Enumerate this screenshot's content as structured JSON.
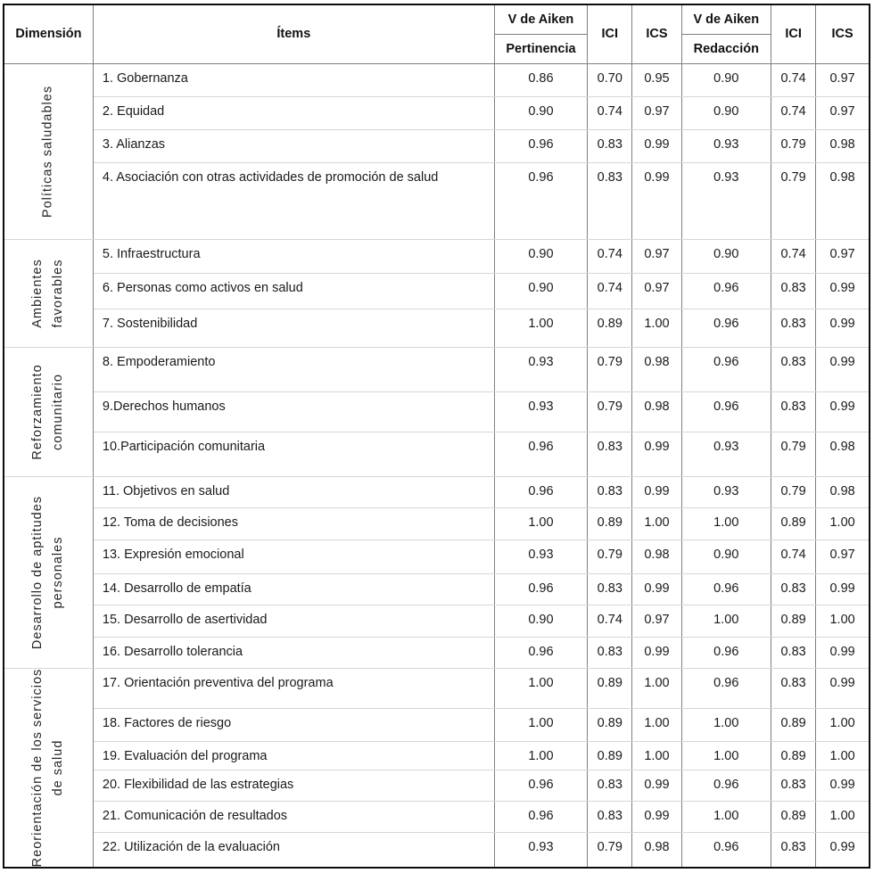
{
  "table": {
    "header": {
      "dimension": "Dimensión",
      "items": "Ítems",
      "aiken_pertinencia_top": "V de Aiken",
      "aiken_pertinencia_sub": "Pertinencia",
      "ici_1": "ICI",
      "ics_1": "ICS",
      "aiken_redaccion_top": "V de Aiken",
      "aiken_redaccion_sub": "Redacción",
      "ici_2": "ICI",
      "ics_2": "ICS"
    },
    "groups": [
      {
        "dimension": "Políticas saludables",
        "rows": [
          {
            "item": "1. Gobernanza",
            "values": [
              "0.86",
              "0.70",
              "0.95",
              "0.90",
              "0.74",
              "0.97"
            ]
          },
          {
            "item": "2. Equidad",
            "values": [
              "0.90",
              "0.74",
              "0.97",
              "0.90",
              "0.74",
              "0.97"
            ]
          },
          {
            "item": "3. Alianzas",
            "values": [
              "0.96",
              "0.83",
              "0.99",
              "0.93",
              "0.79",
              "0.98"
            ]
          },
          {
            "item": "4. Asociación con otras actividades de promoción de salud",
            "values": [
              "0.96",
              "0.83",
              "0.99",
              "0.93",
              "0.79",
              "0.98"
            ]
          }
        ]
      },
      {
        "dimension": "Ambientes\nfavorables",
        "rows": [
          {
            "item": "5. Infraestructura",
            "values": [
              "0.90",
              "0.74",
              "0.97",
              "0.90",
              "0.74",
              "0.97"
            ]
          },
          {
            "item": "6. Personas como activos en salud",
            "values": [
              "0.90",
              "0.74",
              "0.97",
              "0.96",
              "0.83",
              "0.99"
            ]
          },
          {
            "item": "7. Sostenibilidad",
            "values": [
              "1.00",
              "0.89",
              "1.00",
              "0.96",
              "0.83",
              "0.99"
            ]
          }
        ]
      },
      {
        "dimension": "Reforzamiento\ncomunitario",
        "rows": [
          {
            "item": "8. Empoderamiento",
            "values": [
              "0.93",
              "0.79",
              "0.98",
              "0.96",
              "0.83",
              "0.99"
            ]
          },
          {
            "item": "9.Derechos humanos",
            "values": [
              "0.93",
              "0.79",
              "0.98",
              "0.96",
              "0.83",
              "0.99"
            ]
          },
          {
            "item": "10.Participación comunitaria",
            "values": [
              "0.96",
              "0.83",
              "0.99",
              "0.93",
              "0.79",
              "0.98"
            ]
          }
        ]
      },
      {
        "dimension": "Desarrollo de aptitudes\npersonales",
        "rows": [
          {
            "item": "11. Objetivos en salud",
            "values": [
              "0.96",
              "0.83",
              "0.99",
              "0.93",
              "0.79",
              "0.98"
            ]
          },
          {
            "item": "12. Toma de decisiones",
            "values": [
              "1.00",
              "0.89",
              "1.00",
              "1.00",
              "0.89",
              "1.00"
            ]
          },
          {
            "item": "13. Expresión emocional",
            "values": [
              "0.93",
              "0.79",
              "0.98",
              "0.90",
              "0.74",
              "0.97"
            ]
          },
          {
            "item": "14. Desarrollo de empatía",
            "values": [
              "0.96",
              "0.83",
              "0.99",
              "0.96",
              "0.83",
              "0.99"
            ]
          },
          {
            "item": "15. Desarrollo de asertividad",
            "values": [
              "0.90",
              "0.74",
              "0.97",
              "1.00",
              "0.89",
              "1.00"
            ]
          },
          {
            "item": "16. Desarrollo tolerancia",
            "values": [
              "0.96",
              "0.83",
              "0.99",
              "0.96",
              "0.83",
              "0.99"
            ]
          }
        ]
      },
      {
        "dimension": "Reorientación de los servicios\nde salud",
        "rows": [
          {
            "item": "17. Orientación preventiva del programa",
            "values": [
              "1.00",
              "0.89",
              "1.00",
              "0.96",
              "0.83",
              "0.99"
            ]
          },
          {
            "item": "18. Factores de riesgo",
            "values": [
              "1.00",
              "0.89",
              "1.00",
              "1.00",
              "0.89",
              "1.00"
            ]
          },
          {
            "item": "19. Evaluación del programa",
            "values": [
              "1.00",
              "0.89",
              "1.00",
              "1.00",
              "0.89",
              "1.00"
            ]
          },
          {
            "item": "20. Flexibilidad de las estrategias",
            "values": [
              "0.96",
              "0.83",
              "0.99",
              "0.96",
              "0.83",
              "0.99"
            ]
          },
          {
            "item": "21. Comunicación de resultados",
            "values": [
              "0.96",
              "0.83",
              "0.99",
              "1.00",
              "0.89",
              "1.00"
            ]
          },
          {
            "item": "22. Utilización de la evaluación",
            "values": [
              "0.93",
              "0.79",
              "0.98",
              "0.96",
              "0.83",
              "0.99"
            ]
          }
        ]
      }
    ]
  }
}
